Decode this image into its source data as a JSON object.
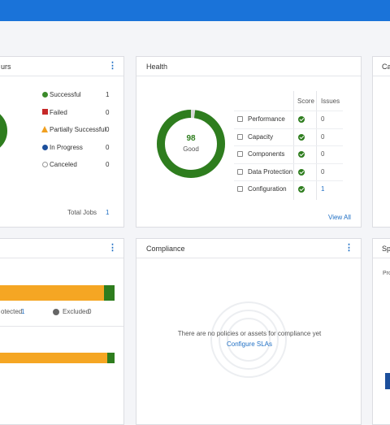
{
  "jobs_card": {
    "title": "urs",
    "statuses": [
      {
        "label": "Successful",
        "count": "1"
      },
      {
        "label": "Failed",
        "count": "0"
      },
      {
        "label": "Partially Successful",
        "count": "0"
      },
      {
        "label": "In Progress",
        "count": "0"
      },
      {
        "label": "Canceled",
        "count": "0"
      }
    ],
    "total_label": "Total Jobs",
    "total": "1"
  },
  "health": {
    "title": "Health",
    "score": 98,
    "status": "Good",
    "headers": [
      "Score",
      "Issues"
    ],
    "rows": [
      {
        "label": "Performance",
        "issues": "0"
      },
      {
        "label": "Capacity",
        "issues": "0"
      },
      {
        "label": "Components",
        "issues": "0"
      },
      {
        "label": "Data Protection",
        "issues": "0"
      },
      {
        "label": "Configuration",
        "issues": "1"
      }
    ],
    "link": "View All"
  },
  "protection_card": {
    "protected_label": "otected",
    "protected": "1",
    "excluded_label": "Excluded",
    "excluded": "0"
  },
  "compliance": {
    "title": "Compliance",
    "message": "There are no policies or assets for compliance yet",
    "link": "Configure SLAs"
  },
  "right_cards": {
    "top_title": "Ca",
    "bottom_title": "Sp",
    "bottom_text": "Pro"
  }
}
